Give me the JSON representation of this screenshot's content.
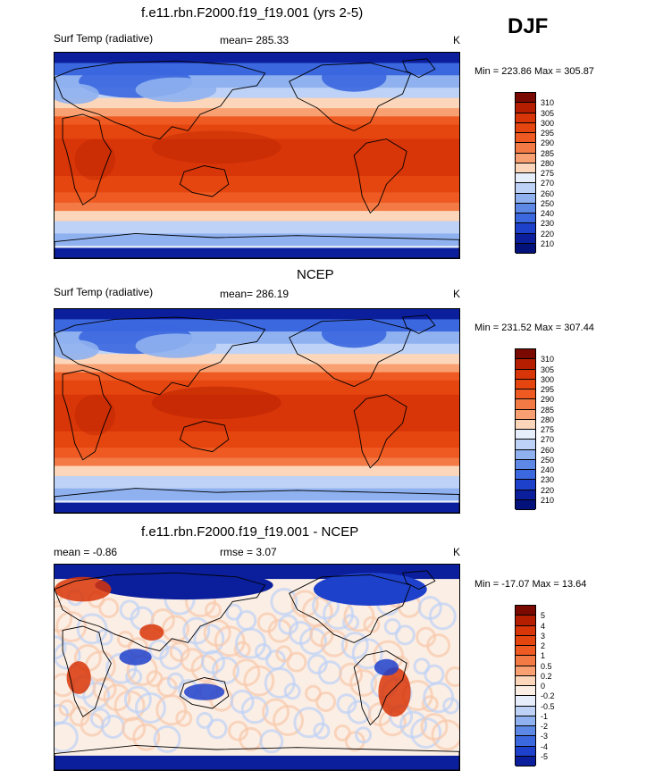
{
  "season": "DJF",
  "panels": [
    {
      "title": "f.e11.rbn.F2000.f19_f19.001 (yrs 2-5)",
      "left_label": "Surf Temp (radiative)",
      "center_label": "mean= 285.33",
      "units": "K",
      "minmax": "Min = 223.86 Max = 305.87",
      "scheme": "abs",
      "levels": [
        "310",
        "305",
        "300",
        "295",
        "290",
        "285",
        "280",
        "275",
        "270",
        "260",
        "250",
        "240",
        "230",
        "220",
        "210"
      ]
    },
    {
      "title": "NCEP",
      "left_label": "Surf Temp (radiative)",
      "center_label": "mean= 286.19",
      "units": "K",
      "minmax": "Min = 231.52 Max = 307.44",
      "scheme": "abs",
      "levels": [
        "310",
        "305",
        "300",
        "295",
        "290",
        "285",
        "280",
        "275",
        "270",
        "260",
        "250",
        "240",
        "230",
        "220",
        "210"
      ]
    },
    {
      "title": "f.e11.rbn.F2000.f19_f19.001 - NCEP",
      "left_label": "mean =  -0.86",
      "center_label": "rmse =   3.07",
      "units": "K",
      "minmax": "Min = -17.07 Max =  13.64",
      "scheme": "diff",
      "levels": [
        "5",
        "4",
        "3",
        "2",
        "1",
        "0.5",
        "0.2",
        "0",
        "-0.2",
        "-0.5",
        "-1",
        "-2",
        "-3",
        "-4",
        "-5"
      ]
    }
  ],
  "colors": {
    "abs": [
      "#7a0a00",
      "#b51f00",
      "#d83508",
      "#e5450f",
      "#ee5a22",
      "#f47a45",
      "#f8a071",
      "#fcd6bb",
      "#e6eefb",
      "#bdd2f6",
      "#8fb1ef",
      "#5d88e6",
      "#3b67df",
      "#1e41cc",
      "#0b1f9c",
      "#03127a"
    ],
    "diff": [
      "#7a0a00",
      "#b51f00",
      "#d83508",
      "#e5450f",
      "#ee5a22",
      "#f47a45",
      "#f8a071",
      "#fcd6bb",
      "#fbeee4",
      "#e6eefb",
      "#bdd2f6",
      "#8fb1ef",
      "#5d88e6",
      "#3b67df",
      "#1e41cc",
      "#0b1f9c"
    ]
  }
}
